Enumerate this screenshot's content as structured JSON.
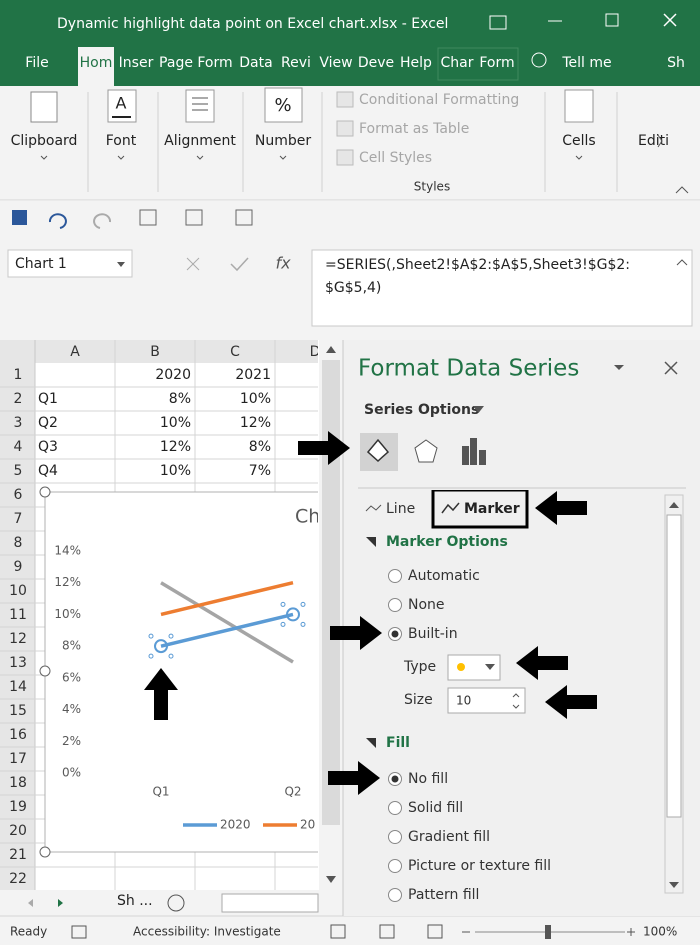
{
  "title_bar": {
    "title": "Dynamic highlight data point on Excel chart.xlsx  -  Excel"
  },
  "tabs": [
    "File",
    "Hom",
    "Inser",
    "Page",
    "Form",
    "Data",
    "Revi",
    "View",
    "Deve",
    "Help",
    "Char",
    "Form",
    "Tell me",
    "Sh"
  ],
  "ribbon": {
    "font_icon": "A",
    "number_icon": "%",
    "groups": [
      "Clipboard",
      "Font",
      "Alignment",
      "Number",
      "Cells",
      "Editi"
    ],
    "styles_items": [
      "Conditional Formatting",
      "Format as Table",
      "Cell Styles"
    ],
    "styles_label": "Styles"
  },
  "formula_bar": {
    "name_box": "Chart 1",
    "fx": "fx",
    "formula": [
      "=SERIES(,Sheet2!$A$2:$A$5,Sheet3!$G$2:",
      "$G$5,4)"
    ]
  },
  "sheet": {
    "columns": [
      "A",
      "B",
      "C",
      "D"
    ],
    "row_numbers": [
      1,
      2,
      3,
      4,
      5,
      6,
      7,
      8,
      9,
      10,
      11,
      12,
      13,
      14,
      15,
      16,
      17,
      18,
      19,
      20,
      21,
      22
    ],
    "cells": [
      {
        "B": "2020",
        "C": "2021"
      },
      {
        "A": "Q1",
        "B": "8%",
        "C": "10%"
      },
      {
        "A": "Q2",
        "B": "10%",
        "C": "12%"
      },
      {
        "A": "Q3",
        "B": "12%",
        "C": "8%"
      },
      {
        "A": "Q4",
        "B": "10%",
        "C": "7%"
      }
    ],
    "tab": "Sh ..."
  },
  "chart": {
    "type": "line",
    "title": "Ch",
    "categories": [
      "Q1",
      "Q2"
    ],
    "series": [
      {
        "name": "2020",
        "color": "#5b9bd5",
        "values": [
          8,
          10
        ]
      },
      {
        "name": "20",
        "color": "#ed7d31",
        "values": [
          10,
          12
        ]
      },
      {
        "color": "#a5a5a5",
        "values": [
          12,
          7
        ]
      }
    ],
    "ylim": [
      0,
      14
    ],
    "yticks": [
      {
        "value": 0,
        "label": "0%"
      },
      {
        "value": 2,
        "label": "2%"
      },
      {
        "value": 4,
        "label": "4%"
      },
      {
        "value": 6,
        "label": "6%"
      },
      {
        "value": 8,
        "label": "8%"
      },
      {
        "value": 10,
        "label": "10%"
      },
      {
        "value": 12,
        "label": "12%"
      },
      {
        "value": 14,
        "label": "14%"
      }
    ]
  },
  "pane": {
    "title": "Format Data Series",
    "series_options": "Series Options",
    "tabs": [
      "Line",
      "Marker"
    ],
    "marker_options": "Marker Options",
    "marker_radios": [
      "Automatic",
      "None",
      "Built-in"
    ],
    "type_label": "Type",
    "size_label": "Size",
    "size_value": "10",
    "fill": "Fill",
    "fill_radios": [
      "No fill",
      "Solid fill",
      "Gradient fill",
      "Picture or texture fill",
      "Pattern fill"
    ]
  },
  "status_bar": {
    "ready": "Ready",
    "accessibility": "Accessibility: Investigate",
    "zoom": "100%"
  }
}
